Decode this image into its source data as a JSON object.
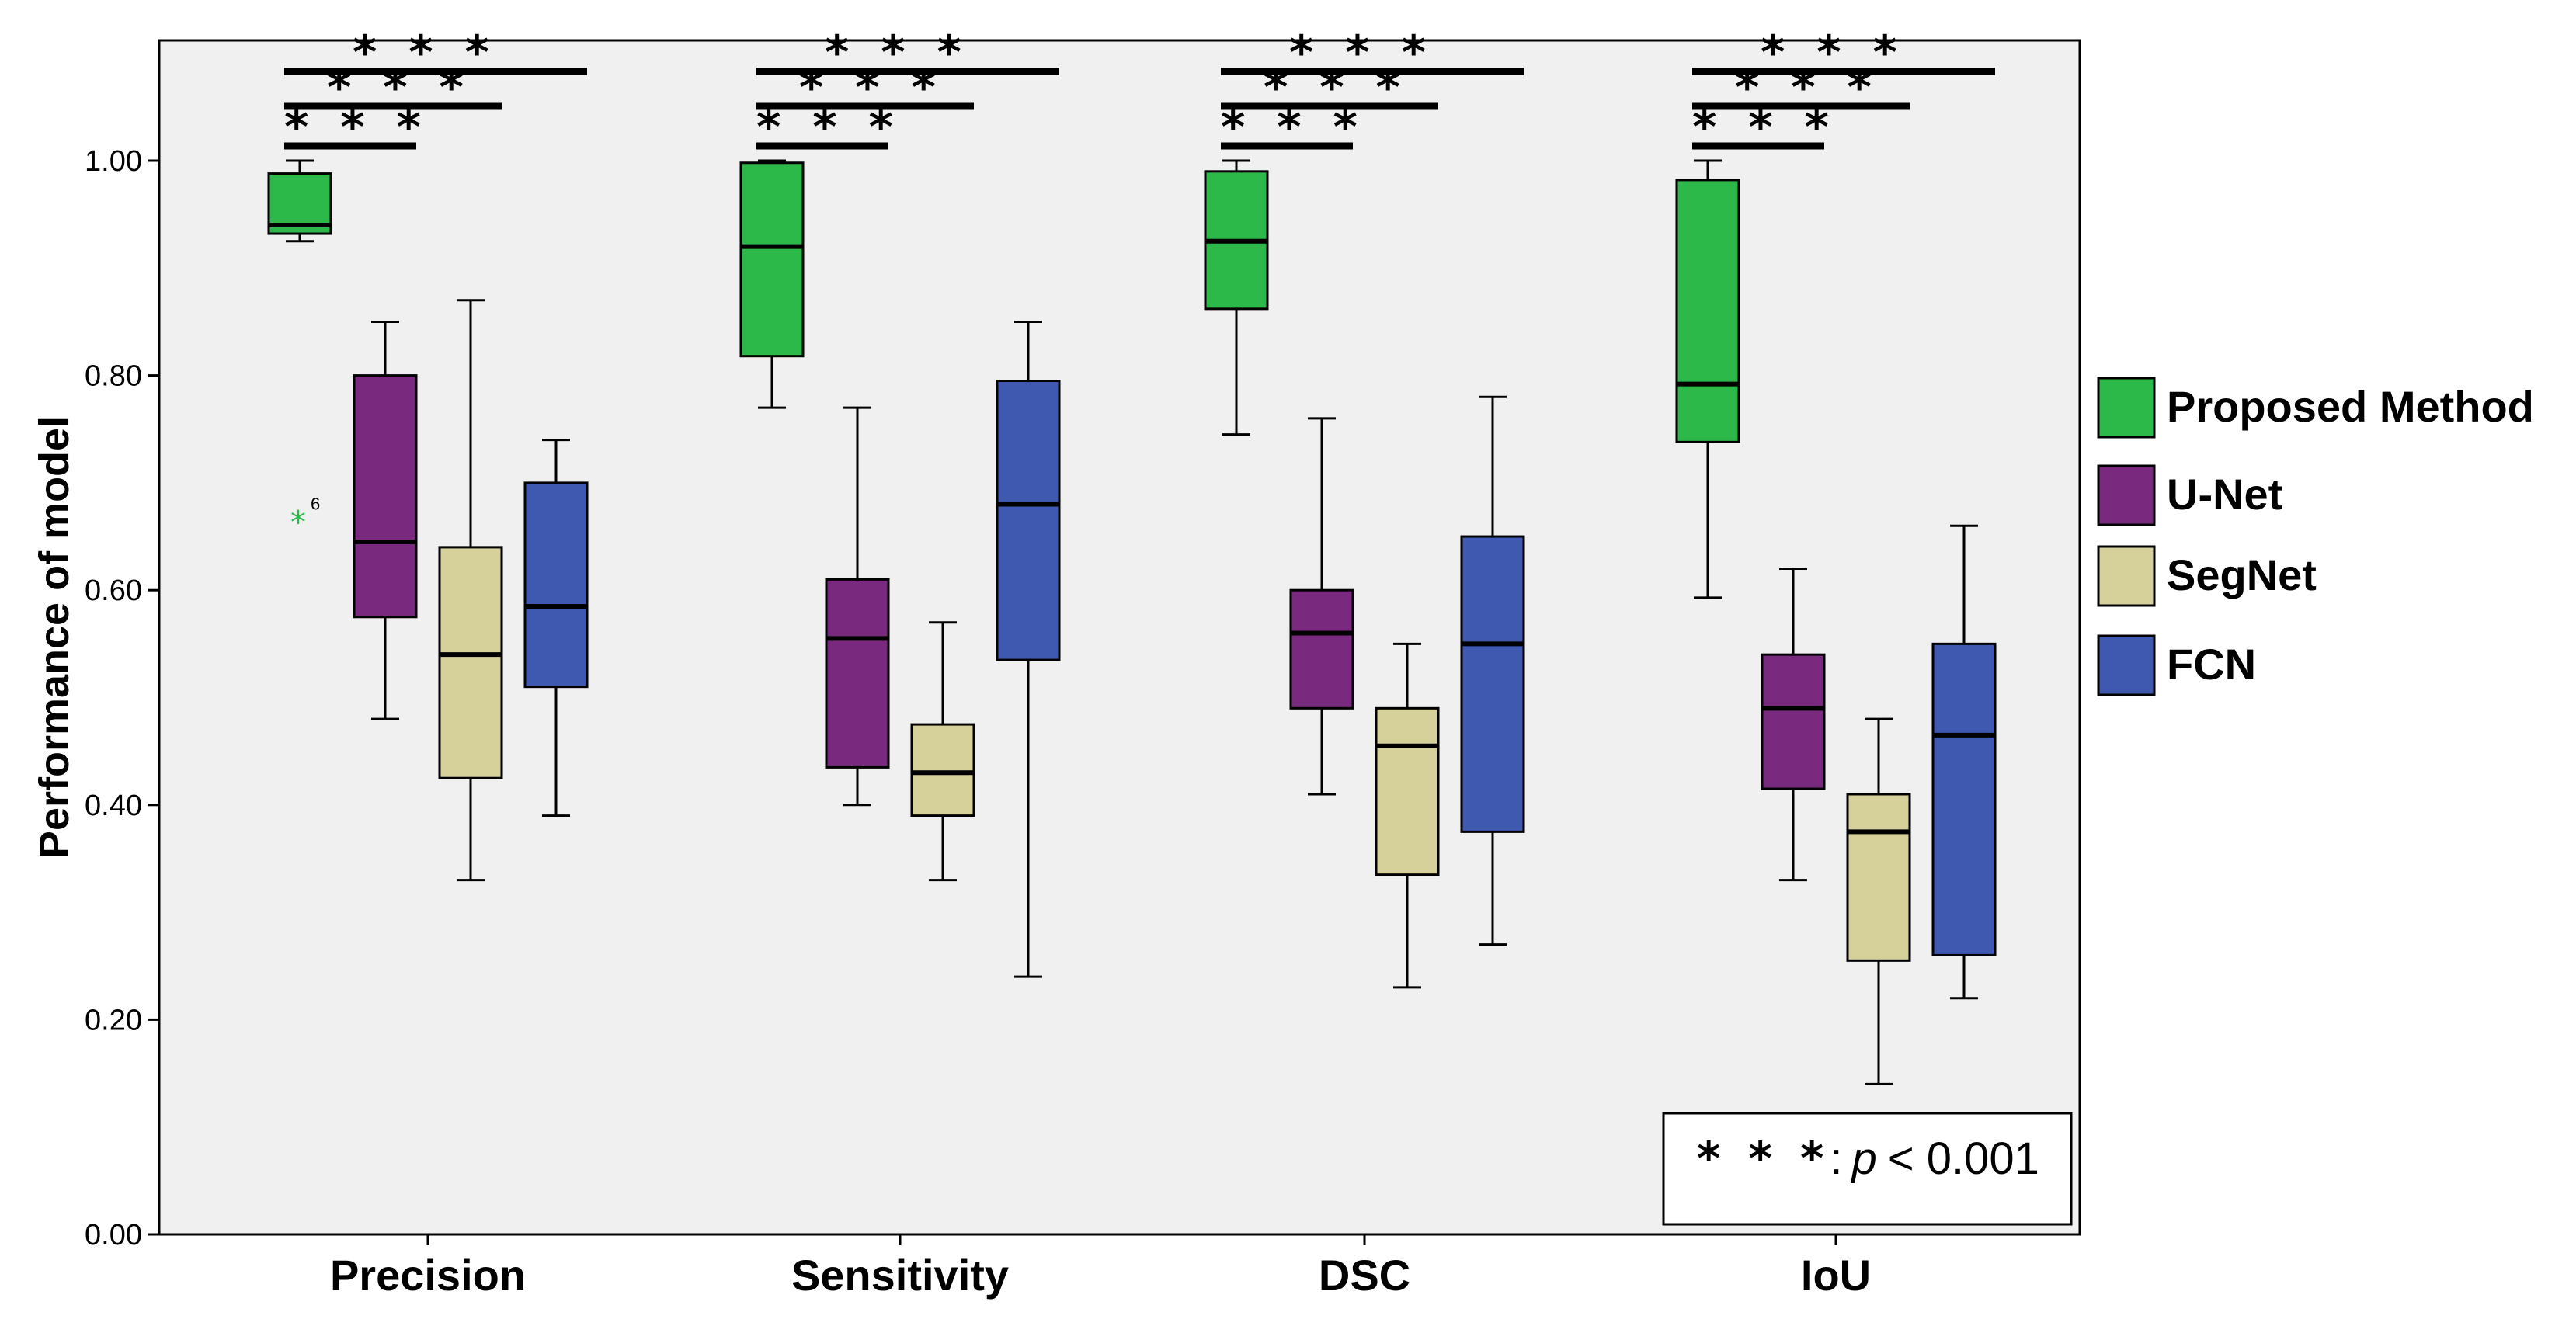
{
  "chart_data": {
    "type": "box",
    "title": "",
    "xlabel": "",
    "ylabel": "Performance of model",
    "ylim": [
      0.0,
      1.12
    ],
    "yticks": [
      0.0,
      0.2,
      0.4,
      0.6,
      0.8,
      1.0
    ],
    "ytick_labels": [
      "0.00",
      "0.20",
      "0.40",
      "0.60",
      "0.80",
      "1.00"
    ],
    "grid": false,
    "legend_position": "right",
    "categories": [
      "Precision",
      "Sensitivity",
      "DSC",
      "IoU"
    ],
    "series": [
      {
        "name": "Proposed Method",
        "color": "#2db84a",
        "boxes": [
          {
            "min": 0.925,
            "q1": 0.932,
            "median": 0.94,
            "q3": 0.988,
            "max": 1.0
          },
          {
            "min": 0.77,
            "q1": 0.818,
            "median": 0.92,
            "q3": 0.998,
            "max": 1.0
          },
          {
            "min": 0.745,
            "q1": 0.862,
            "median": 0.925,
            "q3": 0.99,
            "max": 1.0
          },
          {
            "min": 0.593,
            "q1": 0.738,
            "median": 0.792,
            "q3": 0.982,
            "max": 1.0
          }
        ]
      },
      {
        "name": "U-Net",
        "color": "#7a2a7e",
        "boxes": [
          {
            "min": 0.48,
            "q1": 0.575,
            "median": 0.645,
            "q3": 0.8,
            "max": 0.85
          },
          {
            "min": 0.4,
            "q1": 0.435,
            "median": 0.555,
            "q3": 0.61,
            "max": 0.77
          },
          {
            "min": 0.41,
            "q1": 0.49,
            "median": 0.56,
            "q3": 0.6,
            "max": 0.76
          },
          {
            "min": 0.33,
            "q1": 0.415,
            "median": 0.49,
            "q3": 0.54,
            "max": 0.62
          }
        ]
      },
      {
        "name": "SegNet",
        "color": "#d6d19a",
        "boxes": [
          {
            "min": 0.33,
            "q1": 0.425,
            "median": 0.54,
            "q3": 0.64,
            "max": 0.87
          },
          {
            "min": 0.33,
            "q1": 0.39,
            "median": 0.43,
            "q3": 0.475,
            "max": 0.57
          },
          {
            "min": 0.23,
            "q1": 0.335,
            "median": 0.455,
            "q3": 0.49,
            "max": 0.55
          },
          {
            "min": 0.14,
            "q1": 0.255,
            "median": 0.375,
            "q3": 0.41,
            "max": 0.48
          }
        ]
      },
      {
        "name": "FCN",
        "color": "#3f58b0",
        "boxes": [
          {
            "min": 0.39,
            "q1": 0.51,
            "median": 0.585,
            "q3": 0.7,
            "max": 0.74
          },
          {
            "min": 0.24,
            "q1": 0.535,
            "median": 0.68,
            "q3": 0.795,
            "max": 0.85
          },
          {
            "min": 0.27,
            "q1": 0.375,
            "median": 0.55,
            "q3": 0.65,
            "max": 0.78
          },
          {
            "min": 0.22,
            "q1": 0.26,
            "median": 0.465,
            "q3": 0.55,
            "max": 0.66
          }
        ]
      }
    ],
    "outliers": [
      {
        "category": "Precision",
        "series": "Proposed Method",
        "value": 0.665,
        "symbol": "*",
        "label": "6"
      }
    ],
    "significance_marker": "* * *",
    "significance_note": {
      "stars": "* * *",
      "separator": ":",
      "p_symbol": "p",
      "comparison": "< 0.001"
    }
  }
}
